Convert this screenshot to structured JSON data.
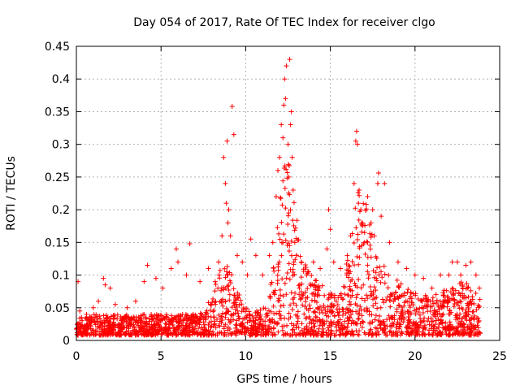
{
  "chart_data": {
    "type": "scatter",
    "title": "Day 054 of 2017, Rate Of TEC Index for receiver clgo",
    "xlabel": "GPS time / hours",
    "ylabel": "ROTI / TECUs",
    "xlim": [
      0,
      25
    ],
    "ylim": [
      0,
      0.45
    ],
    "x_ticks": [
      "0",
      "5",
      "10",
      "15",
      "20",
      "25"
    ],
    "y_ticks": [
      "0",
      "0.05",
      "0.1",
      "0.15",
      "0.2",
      "0.25",
      "0.3",
      "0.35",
      "0.4",
      "0.45"
    ],
    "grid": true,
    "marker": "+",
    "colors": {
      "series": "#ff0000",
      "grid": "#b0b0b0",
      "axis": "#000000"
    },
    "series": [
      {
        "name": "ROTI",
        "points": [
          [
            0.1,
            0.09
          ],
          [
            0.2,
            0.045
          ],
          [
            0.3,
            0.035
          ],
          [
            0.6,
            0.04
          ],
          [
            1.0,
            0.05
          ],
          [
            1.3,
            0.06
          ],
          [
            1.6,
            0.095
          ],
          [
            1.7,
            0.085
          ],
          [
            2.0,
            0.08
          ],
          [
            2.3,
            0.055
          ],
          [
            3.0,
            0.05
          ],
          [
            3.5,
            0.06
          ],
          [
            4.0,
            0.09
          ],
          [
            4.2,
            0.115
          ],
          [
            4.7,
            0.095
          ],
          [
            5.1,
            0.08
          ],
          [
            5.6,
            0.11
          ],
          [
            5.9,
            0.14
          ],
          [
            6.0,
            0.12
          ],
          [
            6.5,
            0.1
          ],
          [
            6.7,
            0.148
          ],
          [
            7.3,
            0.09
          ],
          [
            7.8,
            0.11
          ],
          [
            8.2,
            0.09
          ],
          [
            8.4,
            0.12
          ],
          [
            8.6,
            0.16
          ],
          [
            8.7,
            0.28
          ],
          [
            8.8,
            0.24
          ],
          [
            8.85,
            0.21
          ],
          [
            8.9,
            0.305
          ],
          [
            8.95,
            0.18
          ],
          [
            9.0,
            0.2
          ],
          [
            9.1,
            0.16
          ],
          [
            9.2,
            0.358
          ],
          [
            9.3,
            0.315
          ],
          [
            9.5,
            0.13
          ],
          [
            9.8,
            0.12
          ],
          [
            10.1,
            0.1
          ],
          [
            10.3,
            0.155
          ],
          [
            10.6,
            0.13
          ],
          [
            11.0,
            0.1
          ],
          [
            11.4,
            0.13
          ],
          [
            11.6,
            0.15
          ],
          [
            11.8,
            0.22
          ],
          [
            11.9,
            0.26
          ],
          [
            12.0,
            0.28
          ],
          [
            12.1,
            0.33
          ],
          [
            12.2,
            0.31
          ],
          [
            12.25,
            0.36
          ],
          [
            12.3,
            0.4
          ],
          [
            12.35,
            0.37
          ],
          [
            12.4,
            0.42
          ],
          [
            12.5,
            0.3
          ],
          [
            12.55,
            0.25
          ],
          [
            12.6,
            0.43
          ],
          [
            12.65,
            0.33
          ],
          [
            12.7,
            0.35
          ],
          [
            12.75,
            0.28
          ],
          [
            12.8,
            0.23
          ],
          [
            12.9,
            0.15
          ],
          [
            13.0,
            0.13
          ],
          [
            13.3,
            0.12
          ],
          [
            13.6,
            0.1
          ],
          [
            14.0,
            0.12
          ],
          [
            14.4,
            0.11
          ],
          [
            14.8,
            0.14
          ],
          [
            14.9,
            0.2
          ],
          [
            15.0,
            0.17
          ],
          [
            15.2,
            0.12
          ],
          [
            15.6,
            0.11
          ],
          [
            16.0,
            0.13
          ],
          [
            16.2,
            0.16
          ],
          [
            16.4,
            0.24
          ],
          [
            16.5,
            0.305
          ],
          [
            16.55,
            0.32
          ],
          [
            16.6,
            0.3
          ],
          [
            16.7,
            0.23
          ],
          [
            16.8,
            0.2
          ],
          [
            16.9,
            0.18
          ],
          [
            17.0,
            0.15
          ],
          [
            17.2,
            0.22
          ],
          [
            17.4,
            0.18
          ],
          [
            17.5,
            0.2
          ],
          [
            17.6,
            0.16
          ],
          [
            17.8,
            0.24
          ],
          [
            17.85,
            0.256
          ],
          [
            18.0,
            0.19
          ],
          [
            18.2,
            0.24
          ],
          [
            18.5,
            0.15
          ],
          [
            19.0,
            0.12
          ],
          [
            19.5,
            0.11
          ],
          [
            20.0,
            0.1
          ],
          [
            20.5,
            0.095
          ],
          [
            21.0,
            0.08
          ],
          [
            21.5,
            0.1
          ],
          [
            22.0,
            0.1
          ],
          [
            22.2,
            0.12
          ],
          [
            22.5,
            0.12
          ],
          [
            22.7,
            0.1
          ],
          [
            23.0,
            0.115
          ],
          [
            23.3,
            0.12
          ],
          [
            23.6,
            0.1
          ],
          [
            23.8,
            0.08
          ]
        ]
      }
    ]
  }
}
